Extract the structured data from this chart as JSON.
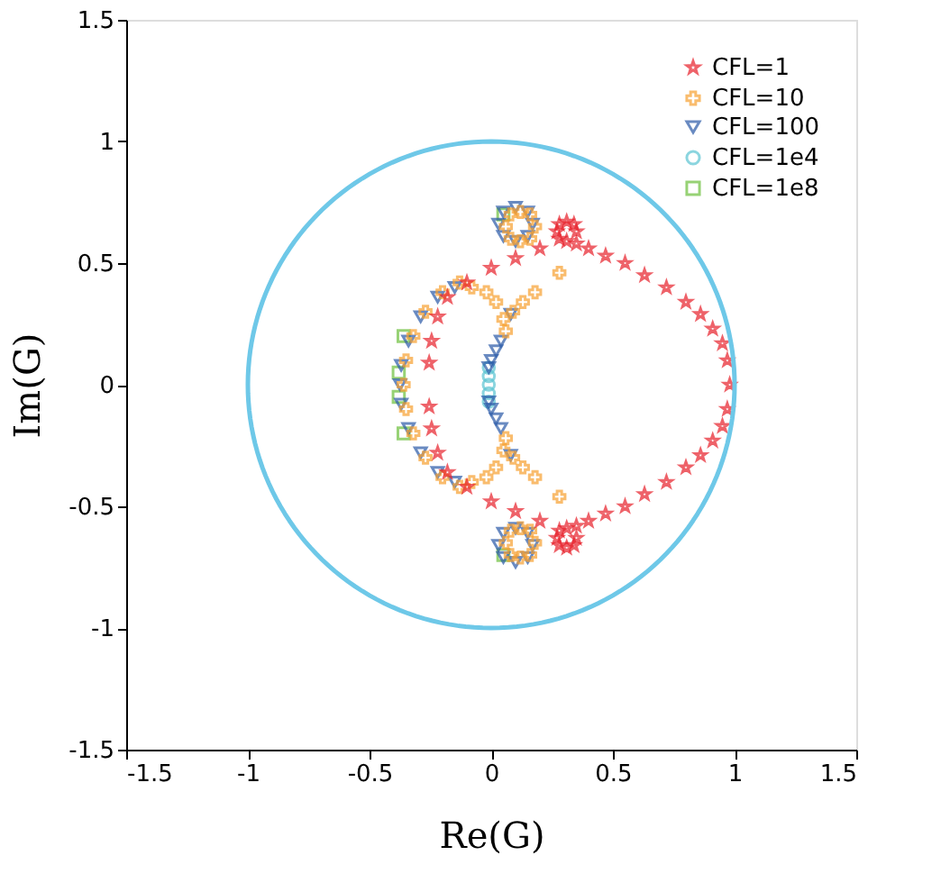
{
  "chart_data": {
    "type": "scatter",
    "xlabel": "Re(G)",
    "ylabel": "Im(G)",
    "xlim": [
      -1.5,
      1.5
    ],
    "ylim": [
      -1.5,
      1.5
    ],
    "xticks": [
      -1.5,
      -1,
      -0.5,
      0,
      0.5,
      1,
      1.5
    ],
    "yticks": [
      -1.5,
      -1,
      -0.5,
      0,
      0.5,
      1,
      1.5
    ],
    "grid": false,
    "legend": "top right",
    "series": [
      {
        "name": "CFL=1",
        "color": "#e8202a",
        "marker": "star",
        "x": [
          0.98,
          0.97,
          0.95,
          0.91,
          0.86,
          0.8,
          0.72,
          0.63,
          0.55,
          0.47,
          0.4,
          0.35,
          0.35,
          0.34,
          0.31,
          0.28,
          0.27,
          0.28,
          0.31,
          0.2,
          0.1,
          0,
          -0.1,
          -0.18,
          -0.22,
          -0.245,
          -0.255,
          -0.255,
          -0.245,
          -0.22,
          -0.18,
          -0.1,
          0,
          0.1,
          0.2,
          0.31,
          0.28,
          0.27,
          0.28,
          0.31,
          0.34,
          0.35,
          0.35,
          0.4,
          0.47,
          0.55,
          0.63,
          0.72,
          0.8,
          0.86,
          0.91,
          0.95,
          0.97
        ],
        "values": [
          0,
          0.1,
          0.17,
          0.23,
          0.29,
          0.34,
          0.4,
          0.45,
          0.5,
          0.53,
          0.56,
          0.58,
          0.63,
          0.66,
          0.67,
          0.66,
          0.63,
          0.6,
          0.59,
          0.56,
          0.52,
          0.48,
          0.42,
          0.36,
          0.28,
          0.18,
          0.09,
          -0.09,
          -0.18,
          -0.28,
          -0.36,
          -0.42,
          -0.48,
          -0.52,
          -0.56,
          -0.59,
          -0.6,
          -0.63,
          -0.66,
          -0.67,
          -0.66,
          -0.63,
          -0.58,
          -0.56,
          -0.53,
          -0.5,
          -0.45,
          -0.4,
          -0.34,
          -0.29,
          -0.23,
          -0.17,
          -0.1
        ]
      },
      {
        "name": "CFL=10",
        "color": "#f7a030",
        "marker": "cross",
        "x": [
          -0.13,
          -0.2,
          -0.27,
          -0.32,
          -0.35,
          -0.36,
          -0.35,
          -0.32,
          -0.27,
          -0.2,
          -0.13,
          -0.08,
          -0.02,
          0.02,
          0.05,
          0.06,
          -0.08,
          -0.02,
          0.02,
          0.05,
          0.06,
          0.09,
          0.13,
          0.18,
          0.28,
          0.09,
          0.13,
          0.18,
          0.28,
          0.18,
          0.16,
          0.12,
          0.08,
          0.06,
          0.08,
          0.12,
          0.16,
          0.18,
          0.16,
          0.12,
          0.08,
          0.06,
          0.08,
          0.12,
          0.16
        ],
        "values": [
          0.42,
          0.38,
          0.3,
          0.2,
          0.1,
          0,
          -0.1,
          -0.2,
          -0.3,
          -0.38,
          -0.42,
          0.4,
          0.38,
          0.34,
          0.27,
          0.22,
          -0.4,
          -0.38,
          -0.34,
          -0.27,
          -0.22,
          0.3,
          0.34,
          0.38,
          0.46,
          -0.3,
          -0.34,
          -0.38,
          -0.46,
          0.65,
          0.7,
          0.71,
          0.7,
          0.65,
          0.6,
          0.59,
          0.6,
          -0.65,
          -0.7,
          -0.71,
          -0.7,
          -0.65,
          -0.6,
          -0.59,
          -0.6
        ]
      },
      {
        "name": "CFL=100",
        "color": "#2a5aa8",
        "marker": "triangle",
        "x": [
          -0.15,
          -0.22,
          -0.29,
          -0.34,
          -0.37,
          -0.375,
          -0.37,
          -0.34,
          -0.29,
          -0.22,
          -0.15,
          0.04,
          0.02,
          0,
          -0.01,
          0.04,
          0.02,
          0,
          -0.01,
          0.08,
          0.08,
          0.17,
          0.15,
          0.1,
          0.05,
          0.03,
          0.05,
          0.1,
          0.15,
          0.17,
          0.15,
          0.1,
          0.05,
          0.03,
          0.05,
          0.1,
          0.15
        ],
        "values": [
          0.4,
          0.36,
          0.28,
          0.18,
          0.08,
          0,
          -0.08,
          -0.18,
          -0.28,
          -0.36,
          -0.4,
          0.18,
          0.14,
          0.1,
          0.07,
          -0.18,
          -0.14,
          -0.1,
          -0.07,
          0.29,
          -0.29,
          0.66,
          0.71,
          0.73,
          0.71,
          0.66,
          0.61,
          0.59,
          0.61,
          -0.66,
          -0.71,
          -0.73,
          -0.71,
          -0.66,
          -0.61,
          -0.59,
          -0.61
        ]
      },
      {
        "name": "CFL=1e4",
        "color": "#5bc4d2",
        "marker": "circle",
        "x": [
          -0.01,
          -0.01,
          -0.01,
          -0.01,
          -0.01
        ],
        "values": [
          0.07,
          0.035,
          0,
          -0.035,
          -0.07
        ]
      },
      {
        "name": "CFL=1e8",
        "color": "#6cbf3c",
        "marker": "square",
        "x": [
          -0.38,
          -0.38,
          -0.36,
          -0.36,
          0.05,
          0.05
        ],
        "values": [
          0.05,
          -0.05,
          0.2,
          -0.2,
          0.7,
          -0.7
        ]
      }
    ]
  }
}
